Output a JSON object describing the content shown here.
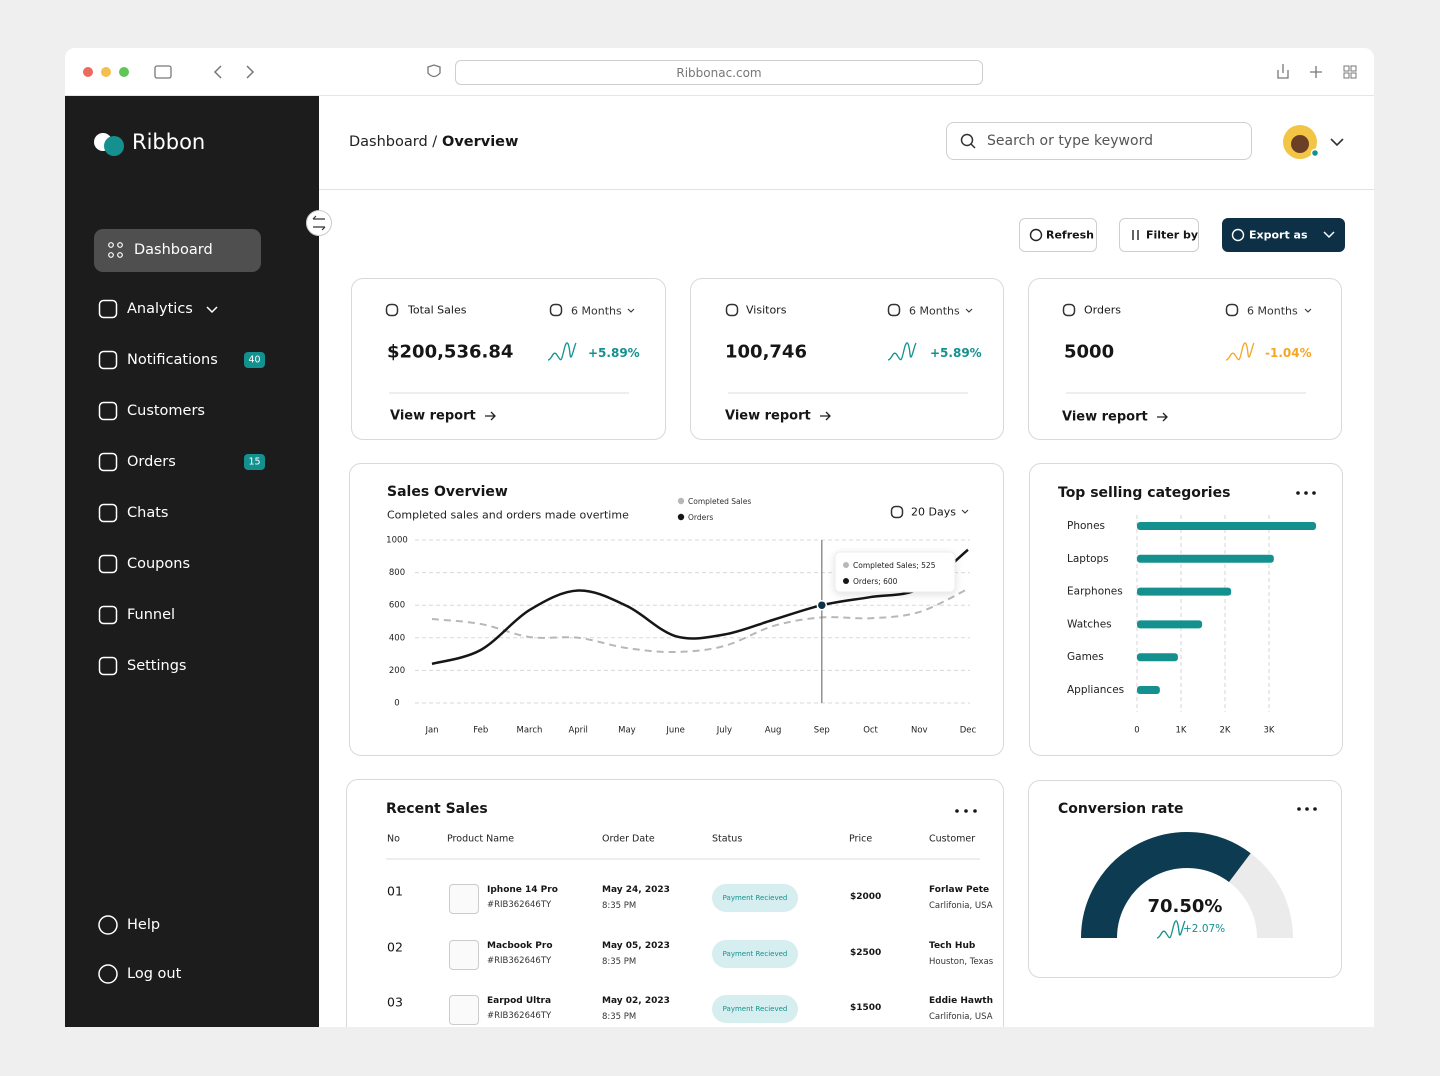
{
  "browser": {
    "url": "Ribbonac.com"
  },
  "sidebar": {
    "brand": "Ribbon",
    "nav": [
      {
        "label": "Dashboard",
        "active": true
      },
      {
        "label": "Analytics",
        "expandable": true
      },
      {
        "label": "Notifications",
        "badge": 40
      },
      {
        "label": "Customers"
      },
      {
        "label": "Orders",
        "badge": 15
      },
      {
        "label": "Chats"
      },
      {
        "label": "Coupons"
      },
      {
        "label": "Funnel"
      },
      {
        "label": "Settings"
      }
    ],
    "footer": [
      {
        "label": "Help"
      },
      {
        "label": "Log out"
      }
    ]
  },
  "header": {
    "breadcrumb": "Dashboard /",
    "current": "Overview",
    "search_placeholder": "Search or type keyword"
  },
  "toolbar": {
    "refresh": "Refresh",
    "filter": "Filter by",
    "export": "Export as"
  },
  "stats": [
    {
      "title": "Total Sales",
      "period": "6 Months",
      "value": "$200,536.84",
      "change": "+5.89%",
      "color": "#13918f",
      "link": "View report"
    },
    {
      "title": "Visitors",
      "period": "6 Months",
      "value": "100,746",
      "change": "+5.89%",
      "color": "#13918f",
      "link": "View report"
    },
    {
      "title": "Orders",
      "period": "6 Months",
      "value": "5000",
      "change": "-1.04%",
      "color": "#f5a623",
      "link": "View report"
    }
  ],
  "chart_data": [
    {
      "type": "line",
      "title": "Sales Overview",
      "subtitle": "Completed sales and orders made overtime",
      "period": "20 Days",
      "categories": [
        "Jan",
        "Feb",
        "March",
        "April",
        "May",
        "June",
        "July",
        "Aug",
        "Sep",
        "Oct",
        "Nov",
        "Dec"
      ],
      "series": [
        {
          "name": "Completed Sales",
          "color": "#b8b8b8",
          "values": [
            515,
            485,
            405,
            400,
            337,
            313,
            350,
            472,
            525,
            520,
            558,
            700
          ]
        },
        {
          "name": "Orders",
          "color": "#161616",
          "values": [
            240,
            325,
            570,
            690,
            595,
            410,
            420,
            510,
            600,
            650,
            700,
            940
          ]
        }
      ],
      "ylim": [
        0,
        1000
      ],
      "yticks": [
        0,
        200,
        400,
        600,
        800,
        1000
      ],
      "grid": true,
      "tooltip": [
        "Completed Sales; 525",
        "Orders; 600"
      ]
    },
    {
      "type": "bar",
      "orientation": "horizontal",
      "title": "Top selling categories",
      "categories": [
        "Phones",
        "Laptops",
        "Earphones",
        "Watches",
        "Games",
        "Appliances"
      ],
      "values": [
        4070,
        3110,
        2140,
        1480,
        930,
        520
      ],
      "color": "#14918f",
      "xlim": [
        0,
        4100
      ],
      "xticks": [
        0,
        {
          "value": 1000,
          "label": "1K"
        },
        {
          "value": 2000,
          "label": "2K"
        },
        {
          "value": 3000,
          "label": "3K"
        }
      ],
      "grid": true
    },
    {
      "type": "gauge",
      "title": "Conversion rate",
      "values": [
        70.5
      ],
      "value_labels": [
        "70.50%"
      ],
      "ylim": [
        0,
        100
      ],
      "change": "+2.07%",
      "colors": [
        "#0d3b52",
        "#ebebeb"
      ]
    }
  ],
  "recent_sales": {
    "title": "Recent Sales",
    "columns": [
      "No",
      "Product Name",
      "Order Date",
      "Status",
      "Price",
      "Customer"
    ],
    "rows": [
      {
        "no": "01",
        "product": "Iphone 14 Pro",
        "sku": "#RIB362646TY",
        "date": "May 24, 2023",
        "time": "8:35 PM",
        "status": "Payment Recieved",
        "price": "$2000",
        "customer": "Forlaw Pete",
        "location": "Carlifonia, USA"
      },
      {
        "no": "02",
        "product": "Macbook Pro",
        "sku": "#RIB362646TY",
        "date": "May 05, 2023",
        "time": "8:35 PM",
        "status": "Payment Recieved",
        "price": "$2500",
        "customer": "Tech Hub",
        "location": "Houston, Texas"
      },
      {
        "no": "03",
        "product": "Earpod Ultra",
        "sku": "#RIB362646TY",
        "date": "May 02, 2023",
        "time": "8:35 PM",
        "status": "Payment Recieved",
        "price": "$1500",
        "customer": "Eddie Hawth",
        "location": "Carlifonia, USA"
      }
    ]
  }
}
